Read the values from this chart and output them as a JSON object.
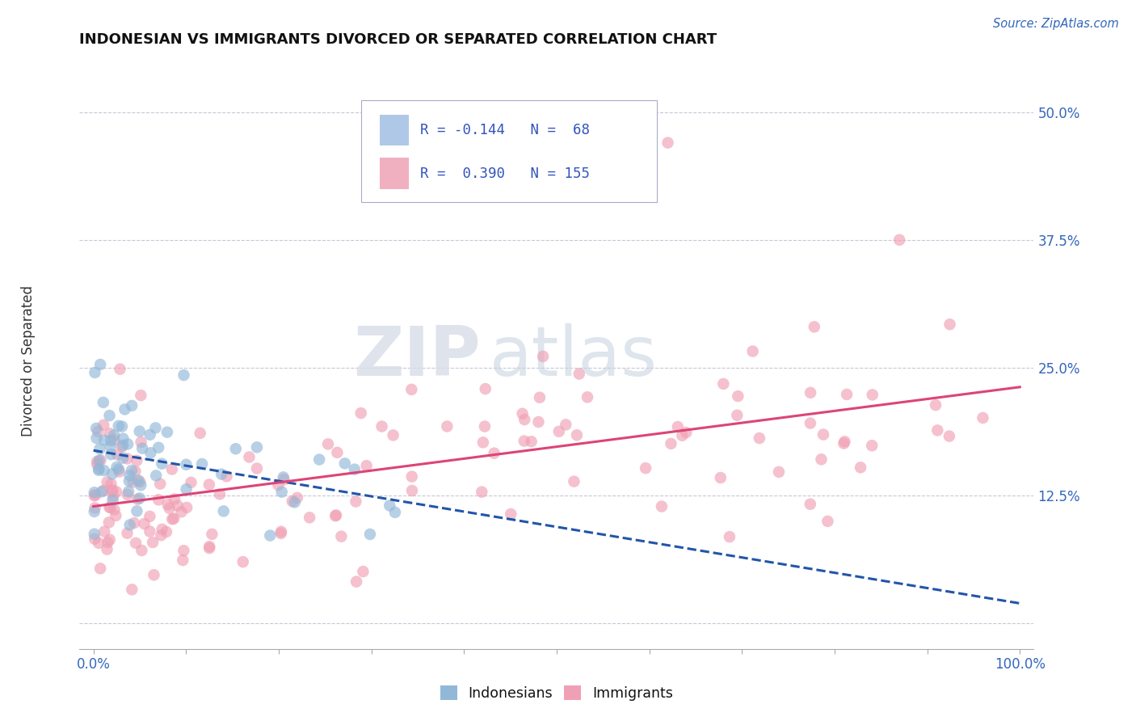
{
  "title": "INDONESIAN VS IMMIGRANTS DIVORCED OR SEPARATED CORRELATION CHART",
  "source": "Source: ZipAtlas.com",
  "ylabel": "Divorced or Separated",
  "ylabel_ticks": [
    0.0,
    0.125,
    0.25,
    0.375,
    0.5
  ],
  "ylabel_labels": [
    "",
    "12.5%",
    "25.0%",
    "37.5%",
    "50.0%"
  ],
  "blue_color": "#92b8d8",
  "pink_color": "#f0a0b5",
  "blue_line_color": "#2255aa",
  "pink_line_color": "#dd4477",
  "watermark_zip": "ZIP",
  "watermark_atlas": "atlas",
  "R_indo": -0.144,
  "N_indo": 68,
  "R_imm": 0.39,
  "N_imm": 155,
  "seed": 12345
}
